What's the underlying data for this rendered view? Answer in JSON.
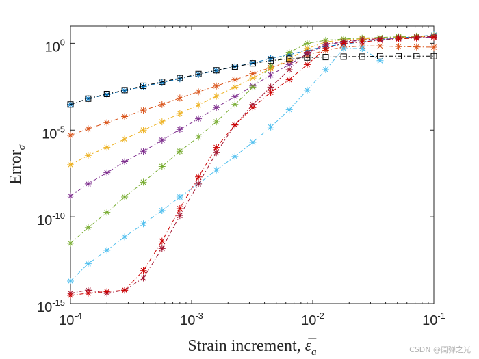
{
  "chart_data": {
    "type": "line",
    "scale": {
      "x": "log",
      "y": "log"
    },
    "xlabel": "Strain increment, ",
    "xlabel_symbol": "ε̅",
    "xlabel_subscript": "a",
    "ylabel": "Error",
    "ylabel_subscript": "σ",
    "xlim": [
      0.0001,
      0.1
    ],
    "ylim": [
      1e-15,
      10
    ],
    "x_ticks": [
      {
        "value": 0.0001,
        "base": "10",
        "exp": "-4"
      },
      {
        "value": 0.001,
        "base": "10",
        "exp": "-3"
      },
      {
        "value": 0.01,
        "base": "10",
        "exp": "-2"
      },
      {
        "value": 0.1,
        "base": "10",
        "exp": "-1"
      }
    ],
    "y_ticks": [
      {
        "value": 1,
        "base": "10",
        "exp": "0"
      },
      {
        "value": 1e-05,
        "base": "10",
        "exp": "-5"
      },
      {
        "value": 1e-10,
        "base": "10",
        "exp": "-10"
      },
      {
        "value": 1e-15,
        "base": "10",
        "exp": "-15"
      }
    ],
    "grid": false,
    "x": [
      0.0001,
      0.00014,
      0.0002,
      0.00028,
      0.0004,
      0.00057,
      0.0008,
      0.00114,
      0.0016,
      0.00228,
      0.0032,
      0.0045,
      0.0064,
      0.009,
      0.0128,
      0.018,
      0.0256,
      0.036,
      0.0512,
      0.072,
      0.1
    ],
    "series": [
      {
        "name": "s1",
        "color": "#0072bd",
        "marker": "star",
        "values": [
          0.0003,
          0.00065,
          0.0011,
          0.0019,
          0.0032,
          0.0055,
          0.009,
          0.016,
          0.027,
          0.045,
          0.075,
          0.13,
          0.22,
          0.4,
          0.65,
          0.9,
          1.2,
          1.6,
          2.0,
          2.5,
          3.0
        ]
      },
      {
        "name": "s2",
        "color": "#d95319",
        "marker": "star",
        "values": [
          5e-06,
          1.2e-05,
          2.7e-05,
          6e-05,
          0.00014,
          0.0003,
          0.0007,
          0.0016,
          0.0035,
          0.008,
          0.018,
          0.04,
          0.09,
          0.2,
          0.4,
          0.6,
          0.7,
          0.7,
          0.65,
          0.62,
          0.6
        ]
      },
      {
        "name": "s3",
        "color": "#edb120",
        "marker": "star",
        "values": [
          1e-07,
          3.5e-07,
          1e-06,
          3e-06,
          1e-05,
          3e-05,
          9e-05,
          0.00028,
          0.0009,
          0.003,
          0.01,
          0.035,
          0.12,
          0.5,
          1.2,
          1.6,
          1.8,
          2.0,
          2.2,
          2.4,
          2.6
        ]
      },
      {
        "name": "s4",
        "color": "#7e2f8e",
        "marker": "star",
        "values": [
          1.6e-09,
          8e-09,
          3.5e-08,
          1.5e-07,
          6e-07,
          2.6e-06,
          1.1e-05,
          4.5e-05,
          0.0002,
          0.00085,
          0.0035,
          0.015,
          0.06,
          0.25,
          0.8,
          1.2,
          1.5,
          1.7,
          1.9,
          2.1,
          2.3
        ]
      },
      {
        "name": "s5",
        "color": "#77ac30",
        "marker": "star",
        "values": [
          3e-12,
          2.4e-11,
          1.8e-10,
          1.4e-09,
          1e-08,
          8e-08,
          6e-07,
          4e-06,
          3e-05,
          0.0003,
          0.003,
          0.05,
          0.3,
          1.0,
          1.5,
          1.8,
          2.0,
          2.2,
          2.4,
          2.6,
          2.8
        ]
      },
      {
        "name": "s6",
        "color": "#4dbeee",
        "marker": "star",
        "values": [
          2e-14,
          2e-13,
          1.2e-12,
          7e-12,
          4e-11,
          2.3e-10,
          1.4e-09,
          8e-09,
          5e-08,
          3e-07,
          2e-06,
          1.5e-05,
          0.00015,
          0.002,
          0.03,
          0.5,
          0.5,
          0.1,
          null,
          null,
          null
        ]
      },
      {
        "name": "s7",
        "color": "#a2142f",
        "marker": "star",
        "values": [
          4e-15,
          6e-15,
          4e-15,
          6e-15,
          3e-14,
          1.5e-12,
          1.2e-10,
          8e-09,
          5e-07,
          2e-05,
          0.0003,
          0.003,
          0.03,
          0.3,
          0.9,
          1.3,
          1.6,
          1.9,
          2.1,
          2.3,
          2.5
        ]
      },
      {
        "name": "s8",
        "color": "#cc0000",
        "marker": "star",
        "values": [
          3e-15,
          4e-15,
          5e-15,
          6e-15,
          8e-14,
          4e-12,
          3e-10,
          2e-08,
          1e-06,
          2e-05,
          0.0002,
          0.0015,
          0.008,
          0.06,
          0.5,
          1.0,
          1.2,
          1.5,
          1.8,
          2.0,
          2.2
        ]
      },
      {
        "name": "s9",
        "color": "#000000",
        "marker": "square",
        "values": [
          0.0003,
          0.00065,
          0.0012,
          0.002,
          0.0036,
          0.006,
          0.01,
          0.017,
          0.028,
          0.045,
          0.07,
          0.1,
          0.13,
          0.15,
          0.16,
          0.17,
          0.17,
          0.18,
          0.18,
          0.18,
          0.18
        ]
      }
    ]
  },
  "watermark": "CSDN @阔弹之光"
}
